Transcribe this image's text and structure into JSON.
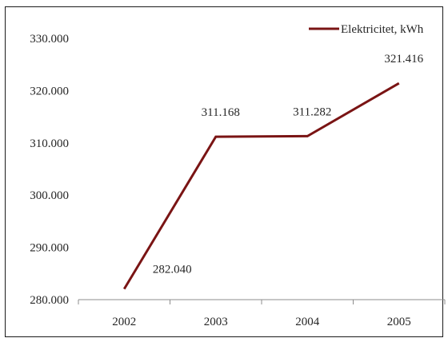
{
  "chart_data": {
    "type": "line",
    "categories": [
      "2002",
      "2003",
      "2004",
      "2005"
    ],
    "series": [
      {
        "name": "Elektricitet, kWh",
        "values": [
          282040,
          311168,
          311282,
          321416
        ],
        "labels": [
          "282.040",
          "311.168",
          "311.282",
          "321.416"
        ]
      }
    ],
    "ylim": [
      280000,
      330000
    ],
    "yticks": [
      280000,
      290000,
      300000,
      310000,
      320000,
      330000
    ],
    "ytick_labels": [
      "280.000",
      "290.000",
      "300.000",
      "310.000",
      "320.000",
      "330.000"
    ],
    "grid": false,
    "legend_position": "top-right",
    "line_color": "#7a1414"
  }
}
